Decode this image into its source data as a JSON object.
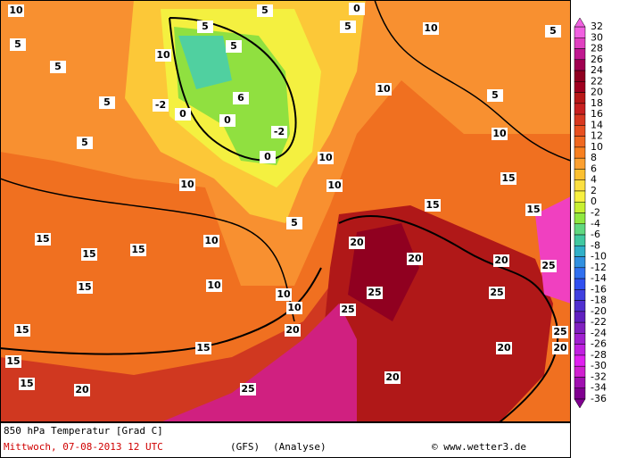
{
  "map": {
    "title": "850 hPa Temperatur [Grad C]",
    "date": "Mittwoch, 07-08-2013  12 UTC",
    "model": "(GFS)",
    "run": "(Analyse)",
    "source": "© www.wetter3.de",
    "colorbar": {
      "levels": [
        32,
        30,
        28,
        26,
        24,
        22,
        20,
        18,
        16,
        14,
        12,
        10,
        8,
        6,
        4,
        2,
        0,
        -2,
        -4,
        -6,
        -8,
        -10,
        -12,
        -14,
        -16,
        -18,
        -20,
        -22,
        -24,
        -26,
        -28,
        -30,
        -32,
        -34,
        -36
      ],
      "colors": [
        "#f060e0",
        "#e040c0",
        "#c01890",
        "#a00050",
        "#900020",
        "#a00020",
        "#b81818",
        "#c82020",
        "#d83820",
        "#e85020",
        "#f06820",
        "#f88020",
        "#fca030",
        "#fcc030",
        "#fce040",
        "#f8f040",
        "#c8f030",
        "#90e840",
        "#60d880",
        "#40c8a0",
        "#30b0c8",
        "#3090e0",
        "#3070f0",
        "#3050f0",
        "#4040e0",
        "#5030d0",
        "#6020c0",
        "#8020c0",
        "#a020d0",
        "#c020e0",
        "#e020f0",
        "#d020d0",
        "#a010b0",
        "#800090"
      ]
    },
    "contour_labels": [
      "10",
      "5",
      "5",
      "5",
      "5",
      "10",
      "10",
      "10",
      "10",
      "6",
      "5",
      "5",
      "0",
      "0",
      "0",
      "-2",
      "-2",
      "5",
      "0",
      "5",
      "10",
      "5",
      "10",
      "5",
      "10",
      "10",
      "10",
      "5",
      "15",
      "15",
      "15",
      "15",
      "15",
      "15",
      "15",
      "20",
      "15",
      "20",
      "20",
      "20",
      "25",
      "25",
      "10",
      "15",
      "15",
      "15",
      "20",
      "25",
      "25",
      "25",
      "20",
      "20",
      "20",
      "25",
      "10"
    ]
  }
}
